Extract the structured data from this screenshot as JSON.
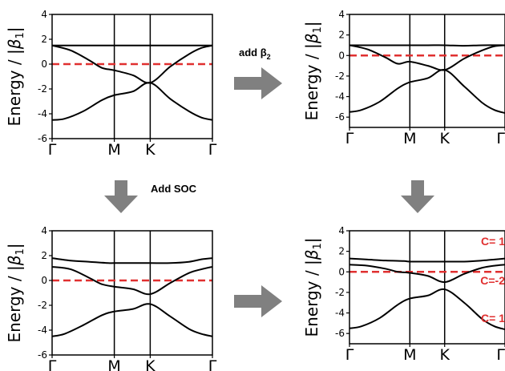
{
  "colors": {
    "band": "#000000",
    "fermi": "#e03030",
    "arrow": "#808080",
    "chern": "#e03030"
  },
  "annotations": {
    "add_beta2_text": "add β",
    "add_beta2_sub": "2",
    "add_soc": "Add SOC"
  },
  "chart_data": [
    {
      "type": "line",
      "panel": "top-left",
      "ylabel_main": "Energy / |",
      "ylabel_beta": "β",
      "ylabel_sub": "1",
      "ylabel_end": "|",
      "ylim": [
        -6,
        4
      ],
      "yticks": [
        4,
        2,
        0,
        -2,
        -4,
        -6
      ],
      "xticks": [
        "Γ",
        "M",
        "K",
        "Γ"
      ],
      "x_positions": [
        0,
        1,
        1.577,
        2.577
      ],
      "fermi_level": 0,
      "series": [
        {
          "x": [
            0,
            0.3,
            0.6,
            0.9,
            1.0,
            1.3,
            1.577,
            1.9,
            2.2,
            2.577
          ],
          "y": [
            1.5,
            1.5,
            1.5,
            1.5,
            1.5,
            1.5,
            1.5,
            1.5,
            1.5,
            1.5
          ]
        },
        {
          "x": [
            0,
            0.3,
            0.6,
            0.8,
            1.0,
            1.3,
            1.577,
            1.9,
            2.2,
            2.4,
            2.577
          ],
          "y": [
            1.5,
            1.1,
            0.3,
            -0.3,
            -0.5,
            -0.9,
            -1.5,
            -0.2,
            0.8,
            1.3,
            1.5
          ]
        },
        {
          "x": [
            0,
            0.2,
            0.5,
            0.8,
            1.0,
            1.3,
            1.577,
            1.9,
            2.2,
            2.4,
            2.577
          ],
          "y": [
            -4.5,
            -4.4,
            -3.8,
            -2.9,
            -2.5,
            -2.2,
            -1.5,
            -2.8,
            -3.8,
            -4.3,
            -4.5
          ]
        }
      ]
    },
    {
      "type": "line",
      "panel": "top-right",
      "ylabel_main": "Energy / |",
      "ylabel_beta": "β",
      "ylabel_sub": "1",
      "ylabel_end": "|",
      "ylim": [
        -7,
        4
      ],
      "yticks": [
        4,
        2,
        0,
        -2,
        -4,
        -6
      ],
      "xticks": [
        "Γ",
        "M",
        "K",
        "Γ"
      ],
      "x_positions": [
        0,
        1,
        1.577,
        2.577
      ],
      "fermi_level": 0,
      "series": [
        {
          "x": [
            0,
            0.3,
            0.6,
            0.9,
            1.0,
            1.3,
            1.577,
            1.9,
            2.2,
            2.577
          ],
          "y": [
            1.0,
            1.0,
            1.0,
            1.0,
            1.0,
            1.0,
            1.0,
            0.95,
            1.0,
            1.0
          ]
        },
        {
          "x": [
            0,
            0.3,
            0.6,
            0.8,
            1.0,
            1.3,
            1.577,
            1.9,
            2.2,
            2.4,
            2.577
          ],
          "y": [
            1.0,
            0.6,
            -0.2,
            -0.8,
            -0.6,
            -1.0,
            -1.4,
            -0.3,
            0.5,
            0.9,
            1.0
          ]
        },
        {
          "x": [
            0,
            0.2,
            0.5,
            0.8,
            1.0,
            1.3,
            1.577,
            1.9,
            2.2,
            2.4,
            2.577
          ],
          "y": [
            -5.5,
            -5.3,
            -4.5,
            -3.2,
            -2.6,
            -2.2,
            -1.4,
            -3.0,
            -4.6,
            -5.3,
            -5.6
          ]
        }
      ]
    },
    {
      "type": "line",
      "panel": "bottom-left",
      "ylabel_main": "Energy / |",
      "ylabel_beta": "β",
      "ylabel_sub": "1",
      "ylabel_end": "|",
      "ylim": [
        -6,
        4
      ],
      "yticks": [
        4,
        2,
        0,
        -2,
        -4,
        -6
      ],
      "xticks": [
        "Γ",
        "M",
        "K",
        "Γ"
      ],
      "x_positions": [
        0,
        1,
        1.577,
        2.577
      ],
      "fermi_level": 0,
      "series": [
        {
          "x": [
            0,
            0.3,
            0.6,
            0.9,
            1.0,
            1.3,
            1.577,
            1.9,
            2.2,
            2.4,
            2.577
          ],
          "y": [
            1.8,
            1.6,
            1.5,
            1.4,
            1.4,
            1.4,
            1.4,
            1.4,
            1.5,
            1.7,
            1.8
          ]
        },
        {
          "x": [
            0,
            0.3,
            0.6,
            0.8,
            1.0,
            1.3,
            1.577,
            1.9,
            2.2,
            2.4,
            2.577
          ],
          "y": [
            1.1,
            0.9,
            0.2,
            -0.3,
            -0.5,
            -0.7,
            -1.1,
            -0.2,
            0.6,
            0.9,
            1.1
          ]
        },
        {
          "x": [
            0,
            0.2,
            0.5,
            0.8,
            1.0,
            1.3,
            1.577,
            1.9,
            2.2,
            2.4,
            2.577
          ],
          "y": [
            -4.5,
            -4.3,
            -3.6,
            -2.8,
            -2.5,
            -2.3,
            -1.9,
            -2.9,
            -3.9,
            -4.3,
            -4.5
          ]
        }
      ]
    },
    {
      "type": "line",
      "panel": "bottom-right",
      "ylabel_main": "Energy / |",
      "ylabel_beta": "β",
      "ylabel_sub": "1",
      "ylabel_end": "|",
      "ylim": [
        -7,
        4
      ],
      "yticks": [
        4,
        2,
        0,
        -2,
        -4,
        -6
      ],
      "xticks": [
        "Γ",
        "M",
        "K",
        "Γ"
      ],
      "x_positions": [
        0,
        1,
        1.577,
        2.577
      ],
      "fermi_level": 0,
      "chern_labels": [
        "C= 1",
        "C=-2",
        "C= 1"
      ],
      "series": [
        {
          "x": [
            0,
            0.3,
            0.6,
            0.9,
            1.0,
            1.3,
            1.577,
            1.9,
            2.2,
            2.4,
            2.577
          ],
          "y": [
            1.3,
            1.2,
            1.1,
            1.05,
            1.0,
            1.0,
            1.0,
            1.0,
            1.1,
            1.2,
            1.3
          ]
        },
        {
          "x": [
            0,
            0.3,
            0.6,
            0.8,
            1.0,
            1.3,
            1.577,
            1.9,
            2.2,
            2.4,
            2.577
          ],
          "y": [
            0.7,
            0.6,
            0.3,
            0.0,
            -0.1,
            -0.4,
            -1.0,
            -0.2,
            0.4,
            0.6,
            0.7
          ]
        },
        {
          "x": [
            0,
            0.2,
            0.5,
            0.8,
            1.0,
            1.3,
            1.577,
            1.9,
            2.2,
            2.4,
            2.577
          ],
          "y": [
            -5.5,
            -5.3,
            -4.5,
            -3.2,
            -2.6,
            -2.3,
            -1.7,
            -3.0,
            -4.6,
            -5.3,
            -5.6
          ]
        }
      ]
    }
  ]
}
